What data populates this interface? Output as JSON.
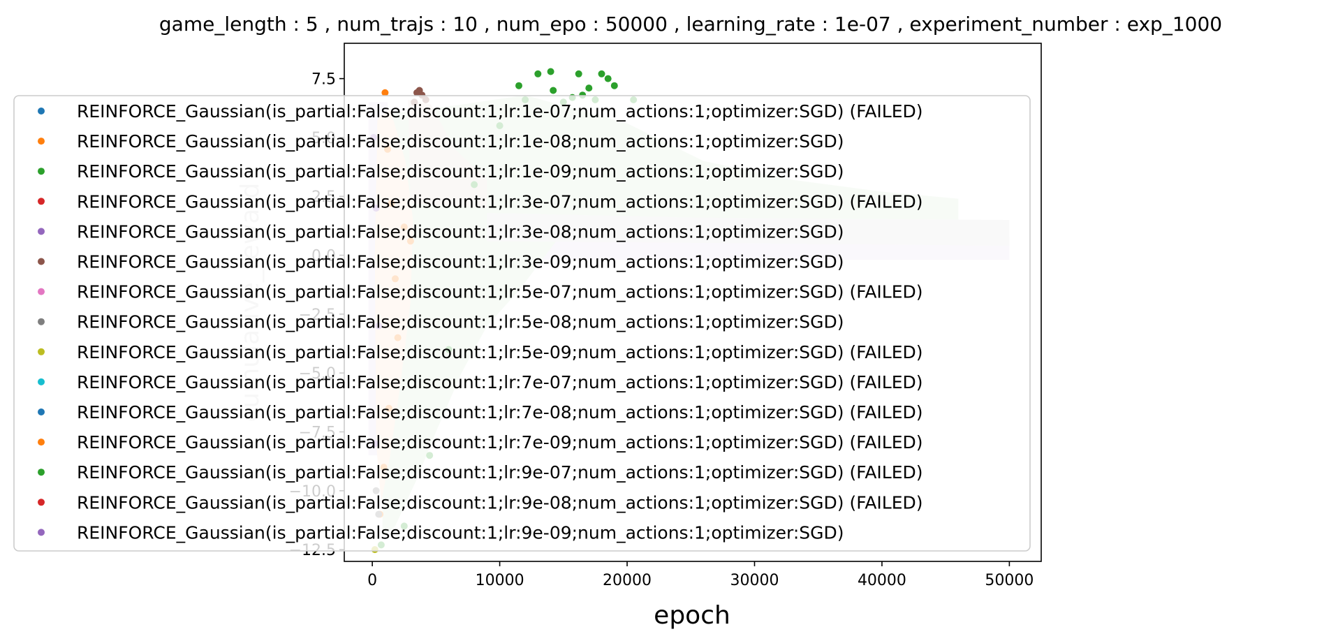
{
  "chart_data": {
    "type": "scatter",
    "title": "game_length : 5 , num_trajs : 10 , num_epo : 50000 , learning_rate : 1e-07 , experiment_number : exp_1000",
    "xlabel": "epoch",
    "ylabel": "cumulative_reward",
    "xlim": [
      -2200,
      52500
    ],
    "ylim": [
      -13.0,
      9.0
    ],
    "xticks": [
      0,
      10000,
      20000,
      30000,
      40000,
      50000
    ],
    "xtick_labels": [
      "0",
      "10000",
      "20000",
      "30000",
      "40000",
      "50000"
    ],
    "yticks": [
      7.5,
      5.0,
      2.5,
      0.0,
      -2.5,
      -5.0,
      -7.5,
      -10.0,
      -12.5
    ],
    "ytick_labels": [
      "7.5",
      "5.0",
      "2.5",
      "0.0",
      "−2.5",
      "−5.0",
      "−7.5",
      "−10.0",
      "−12.5"
    ],
    "grid": false,
    "legend_placement": "center-left",
    "series": [
      {
        "name": "REINFORCE_Gaussian(is_partial:False;discount:1;lr:1e-07;num_actions:1;optimizer:SGD) (FAILED)",
        "color": "#1f77b4",
        "values": []
      },
      {
        "name": "REINFORCE_Gaussian(is_partial:False;discount:1;lr:1e-08;num_actions:1;optimizer:SGD)",
        "color": "#ff7f0e",
        "values": [
          [
            1000,
            6.9
          ],
          [
            1200,
            4.5
          ],
          [
            1500,
            2.2
          ],
          [
            1800,
            -1.0
          ],
          [
            2000,
            -3.5
          ],
          [
            1300,
            -6.5
          ],
          [
            900,
            -9.0
          ],
          [
            600,
            -11.0
          ],
          [
            2500,
            1.2
          ],
          [
            3000,
            0.6
          ]
        ]
      },
      {
        "name": "REINFORCE_Gaussian(is_partial:False;discount:1;lr:1e-09;num_actions:1;optimizer:SGD)",
        "color": "#2ca02c",
        "values": [
          [
            11500,
            7.2
          ],
          [
            12000,
            6.6
          ],
          [
            13000,
            7.7
          ],
          [
            14000,
            7.8
          ],
          [
            14200,
            7.0
          ],
          [
            15000,
            6.5
          ],
          [
            15700,
            6.7
          ],
          [
            16200,
            7.7
          ],
          [
            16500,
            6.8
          ],
          [
            17000,
            7.1
          ],
          [
            17500,
            6.6
          ],
          [
            18000,
            7.7
          ],
          [
            18500,
            7.5
          ],
          [
            19000,
            7.2
          ],
          [
            20500,
            6.6
          ],
          [
            10000,
            5.5
          ],
          [
            8000,
            3.0
          ],
          [
            6000,
            -4.0
          ],
          [
            4500,
            -8.5
          ],
          [
            2500,
            -11.5
          ],
          [
            700,
            -12.3
          ]
        ]
      },
      {
        "name": "REINFORCE_Gaussian(is_partial:False;discount:1;lr:3e-07;num_actions:1;optimizer:SGD) (FAILED)",
        "color": "#d62728",
        "values": []
      },
      {
        "name": "REINFORCE_Gaussian(is_partial:False;discount:1;lr:3e-08;num_actions:1;optimizer:SGD)",
        "color": "#9467bd",
        "values": [
          [
            100,
            5.0
          ],
          [
            200,
            -8.0
          ],
          [
            300,
            2.0
          ],
          [
            500,
            -3.0
          ]
        ]
      },
      {
        "name": "REINFORCE_Gaussian(is_partial:False;discount:1;lr:3e-09;num_actions:1;optimizer:SGD)",
        "color": "#8c564b",
        "values": [
          [
            3500,
            6.9
          ],
          [
            3700,
            7.0
          ],
          [
            3900,
            6.8
          ],
          [
            4200,
            6.6
          ],
          [
            3300,
            6.5
          ]
        ]
      },
      {
        "name": "REINFORCE_Gaussian(is_partial:False;discount:1;lr:5e-07;num_actions:1;optimizer:SGD) (FAILED)",
        "color": "#e377c2",
        "values": []
      },
      {
        "name": "REINFORCE_Gaussian(is_partial:False;discount:1;lr:5e-08;num_actions:1;optimizer:SGD)",
        "color": "#7f7f7f",
        "values": [
          [
            300,
            -10.0
          ],
          [
            500,
            -11.0
          ]
        ]
      },
      {
        "name": "REINFORCE_Gaussian(is_partial:False;discount:1;lr:5e-09;num_actions:1;optimizer:SGD) (FAILED)",
        "color": "#bcbd22",
        "values": [
          [
            200,
            -12.5
          ]
        ]
      },
      {
        "name": "REINFORCE_Gaussian(is_partial:False;discount:1;lr:7e-07;num_actions:1;optimizer:SGD) (FAILED)",
        "color": "#17becf",
        "values": []
      },
      {
        "name": "REINFORCE_Gaussian(is_partial:False;discount:1;lr:7e-08;num_actions:1;optimizer:SGD) (FAILED)",
        "color": "#1f77b4",
        "values": []
      },
      {
        "name": "REINFORCE_Gaussian(is_partial:False;discount:1;lr:7e-09;num_actions:1;optimizer:SGD) (FAILED)",
        "color": "#ff7f0e",
        "values": []
      },
      {
        "name": "REINFORCE_Gaussian(is_partial:False;discount:1;lr:9e-07;num_actions:1;optimizer:SGD) (FAILED)",
        "color": "#2ca02c",
        "values": []
      },
      {
        "name": "REINFORCE_Gaussian(is_partial:False;discount:1;lr:9e-08;num_actions:1;optimizer:SGD) (FAILED)",
        "color": "#d62728",
        "values": []
      },
      {
        "name": "REINFORCE_Gaussian(is_partial:False;discount:1;lr:9e-09;num_actions:1;optimizer:SGD)",
        "color": "#9467bd",
        "values": []
      }
    ]
  }
}
